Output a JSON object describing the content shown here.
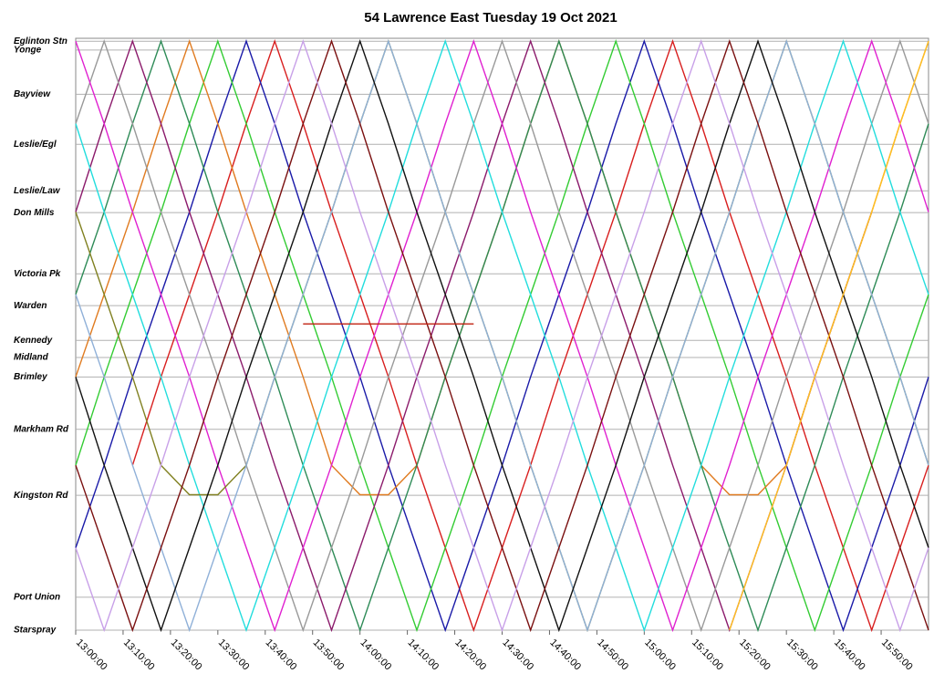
{
  "chart_data": {
    "type": "line",
    "title": "54 Lawrence East Tuesday 19 Oct 2021",
    "xlim": [
      0,
      180
    ],
    "xticks": [
      {
        "value": 0,
        "label": "13:00:00"
      },
      {
        "value": 10,
        "label": "13:10:00"
      },
      {
        "value": 20,
        "label": "13:20:00"
      },
      {
        "value": 30,
        "label": "13:30:00"
      },
      {
        "value": 40,
        "label": "13:40:00"
      },
      {
        "value": 50,
        "label": "13:50:00"
      },
      {
        "value": 60,
        "label": "14:00:00"
      },
      {
        "value": 70,
        "label": "14:10:00"
      },
      {
        "value": 80,
        "label": "14:20:00"
      },
      {
        "value": 90,
        "label": "14:30:00"
      },
      {
        "value": 100,
        "label": "14:40:00"
      },
      {
        "value": 110,
        "label": "14:50:00"
      },
      {
        "value": 120,
        "label": "15:00:00"
      },
      {
        "value": 130,
        "label": "15:10:00"
      },
      {
        "value": 140,
        "label": "15:20:00"
      },
      {
        "value": 150,
        "label": "15:30:00"
      },
      {
        "value": 160,
        "label": "15:40:00"
      },
      {
        "value": 170,
        "label": "15:50:00"
      }
    ],
    "ylim": [
      0,
      100.5
    ],
    "yticks": [
      {
        "value": 100,
        "label": "Eglinton Stn"
      },
      {
        "value": 98.5,
        "label": "Yonge"
      },
      {
        "value": 91,
        "label": "Bayview"
      },
      {
        "value": 82.5,
        "label": "Leslie/Egl"
      },
      {
        "value": 74.6,
        "label": "Leslie/Law"
      },
      {
        "value": 70.9,
        "label": "Don Mills"
      },
      {
        "value": 60.5,
        "label": "Victoria Pk"
      },
      {
        "value": 55.1,
        "label": "Warden"
      },
      {
        "value": 49.2,
        "label": "Kennedy"
      },
      {
        "value": 46.3,
        "label": "Midland"
      },
      {
        "value": 43,
        "label": "Brimley"
      },
      {
        "value": 34.1,
        "label": "Markham Rd"
      },
      {
        "value": 22.9,
        "label": "Kingston Rd"
      },
      {
        "value": 5.6,
        "label": "Port Union"
      },
      {
        "value": 0,
        "label": "Starspray"
      }
    ],
    "grid": true,
    "x": [
      0,
      6,
      12,
      18,
      24,
      30,
      36,
      42,
      48,
      54,
      60,
      66,
      72,
      78,
      84,
      90,
      96,
      102,
      108,
      114,
      120,
      126,
      132,
      138,
      144,
      150,
      156,
      162,
      168,
      174,
      180
    ],
    "series": [
      {
        "color": "#d81e1e",
        "values": [
          null,
          null,
          28,
          43,
          57,
          71,
          86,
          100,
          86,
          71,
          57,
          43,
          28,
          14,
          0,
          14,
          28,
          43,
          57,
          71,
          86,
          100,
          86,
          71,
          57,
          43,
          28,
          14,
          0,
          14,
          28
        ]
      },
      {
        "color": "#1a1aa8",
        "values": [
          14,
          28,
          43,
          57,
          71,
          86,
          100,
          86,
          71,
          57,
          43,
          28,
          14,
          0,
          14,
          28,
          43,
          57,
          71,
          86,
          100,
          86,
          71,
          57,
          43,
          28,
          14,
          0,
          14,
          28,
          43
        ]
      },
      {
        "color": "#33cc33",
        "values": [
          28,
          43,
          57,
          71,
          86,
          100,
          86,
          71,
          57,
          43,
          28,
          14,
          0,
          14,
          28,
          43,
          57,
          71,
          86,
          100,
          86,
          71,
          57,
          43,
          28,
          14,
          0,
          14,
          28,
          43,
          57
        ]
      },
      {
        "color": "#e07b20",
        "values": [
          43,
          57,
          71,
          86,
          100,
          86,
          71,
          57,
          43,
          28,
          23,
          23,
          28,
          43,
          57,
          71,
          86,
          100,
          86,
          71,
          57,
          43,
          28,
          23,
          23,
          28,
          43,
          57,
          71,
          86,
          100
        ]
      },
      {
        "color": "#2e8b57",
        "values": [
          57,
          71,
          86,
          100,
          86,
          71,
          57,
          43,
          28,
          14,
          0,
          14,
          28,
          43,
          57,
          71,
          86,
          100,
          86,
          71,
          57,
          43,
          28,
          14,
          0,
          14,
          28,
          43,
          57,
          71,
          86
        ]
      },
      {
        "color": "#8b1a6b",
        "values": [
          71,
          86,
          100,
          86,
          71,
          57,
          43,
          28,
          14,
          0,
          14,
          28,
          43,
          57,
          71,
          86,
          100,
          86,
          71,
          57,
          43,
          28,
          14,
          0,
          14,
          28,
          43,
          57,
          71,
          null,
          null
        ]
      },
      {
        "color": "#999999",
        "values": [
          86,
          100,
          86,
          71,
          57,
          43,
          28,
          14,
          0,
          14,
          28,
          43,
          57,
          71,
          86,
          100,
          86,
          71,
          57,
          43,
          28,
          14,
          0,
          14,
          28,
          43,
          57,
          71,
          86,
          100,
          86
        ]
      },
      {
        "color": "#e020d0",
        "values": [
          100,
          86,
          71,
          57,
          43,
          28,
          14,
          0,
          14,
          28,
          43,
          57,
          71,
          86,
          100,
          86,
          71,
          57,
          43,
          28,
          14,
          0,
          14,
          28,
          43,
          57,
          71,
          86,
          100,
          86,
          71
        ]
      },
      {
        "color": "#22dddd",
        "values": [
          86,
          71,
          57,
          43,
          28,
          14,
          0,
          14,
          28,
          43,
          57,
          71,
          86,
          100,
          86,
          71,
          57,
          43,
          28,
          14,
          0,
          14,
          28,
          43,
          57,
          71,
          86,
          100,
          86,
          71,
          57
        ]
      },
      {
        "color": "#808020",
        "values": [
          71,
          57,
          43,
          28,
          23,
          23,
          28,
          43,
          57,
          71,
          86,
          100,
          86,
          71,
          57,
          43,
          28,
          14,
          0,
          14,
          28,
          43,
          57,
          71,
          86,
          100,
          86,
          71,
          57,
          43,
          28
        ]
      },
      {
        "color": "#8fb0d8",
        "values": [
          57,
          43,
          28,
          14,
          0,
          14,
          28,
          43,
          57,
          71,
          86,
          100,
          86,
          71,
          57,
          43,
          28,
          14,
          0,
          14,
          28,
          43,
          57,
          71,
          86,
          100,
          86,
          71,
          57,
          43,
          28
        ]
      },
      {
        "color": "#111111",
        "values": [
          43,
          28,
          14,
          0,
          14,
          28,
          43,
          57,
          71,
          86,
          100,
          86,
          71,
          57,
          43,
          28,
          14,
          0,
          14,
          28,
          43,
          57,
          71,
          86,
          100,
          86,
          71,
          57,
          43,
          28,
          14
        ]
      },
      {
        "color": "#7a1010",
        "values": [
          28,
          14,
          0,
          14,
          28,
          43,
          57,
          71,
          86,
          100,
          86,
          71,
          57,
          43,
          28,
          14,
          0,
          14,
          28,
          43,
          57,
          71,
          86,
          100,
          86,
          71,
          57,
          43,
          28,
          14,
          0
        ]
      },
      {
        "color": "#c8a0e8",
        "values": [
          14,
          0,
          14,
          28,
          43,
          57,
          71,
          86,
          100,
          86,
          71,
          57,
          43,
          28,
          14,
          0,
          14,
          28,
          43,
          57,
          71,
          86,
          100,
          86,
          71,
          57,
          43,
          28,
          14,
          0,
          14
        ]
      },
      {
        "color": "#ffc020",
        "values": [
          null,
          null,
          null,
          null,
          null,
          null,
          null,
          null,
          null,
          null,
          null,
          null,
          null,
          null,
          null,
          null,
          null,
          null,
          null,
          null,
          null,
          null,
          null,
          0,
          14,
          28,
          43,
          57,
          71,
          86,
          100
        ]
      },
      {
        "color": "#c02010",
        "values": [
          null,
          null,
          null,
          null,
          null,
          null,
          null,
          null,
          52,
          52,
          52,
          52,
          52,
          52,
          52,
          null,
          null,
          null,
          null,
          null,
          null,
          null,
          null,
          null,
          null,
          null,
          null,
          null,
          null,
          null,
          null
        ]
      }
    ]
  }
}
